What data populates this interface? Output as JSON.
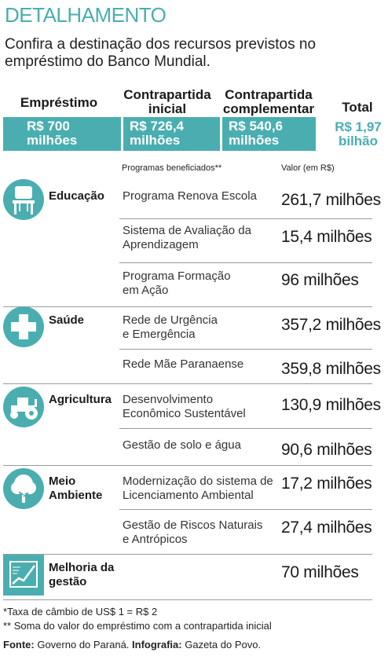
{
  "header": {
    "title": "DETALHAMENTO",
    "subtitle": "Confira a destinação dos recursos previstos no empréstimo do Banco Mundial."
  },
  "summary": [
    {
      "label_line1": "Empréstimo",
      "label_line2": "",
      "value_line1": "R$ 700",
      "value_line2": "milhões"
    },
    {
      "label_line1": "Contrapartida",
      "label_line2": "inicial",
      "value_line1": "R$ 726,4",
      "value_line2": "milhões"
    },
    {
      "label_line1": "Contrapartida",
      "label_line2": "complementar",
      "value_line1": "R$ 540,6",
      "value_line2": "milhões"
    },
    {
      "label_line1": "Total",
      "label_line2": "",
      "value_line1": "R$ 1,97",
      "value_line2": "bilhão"
    }
  ],
  "table": {
    "col_programs": "Programas beneficiados**",
    "col_value": "Valor (em R$)",
    "categories": [
      {
        "name_line1": "Educação",
        "name_line2": "",
        "icon": "chair-icon",
        "programs": [
          {
            "line1": "Programa Renova Escola",
            "line2": "",
            "value": "261,7 milhões"
          },
          {
            "line1": "Sistema de Avaliação da",
            "line2": "Aprendizagem",
            "value": "15,4 milhões"
          },
          {
            "line1": "Programa Formação",
            "line2": "em Ação",
            "value": "96 milhões"
          }
        ]
      },
      {
        "name_line1": "Saúde",
        "name_line2": "",
        "icon": "cross-icon",
        "programs": [
          {
            "line1": "Rede de Urgência",
            "line2": "e Emergência",
            "value": "357,2 milhões"
          },
          {
            "line1": "Rede Mãe Paranaense",
            "line2": "",
            "value": "359,8 milhões"
          }
        ]
      },
      {
        "name_line1": "Agricultura",
        "name_line2": "",
        "icon": "tractor-icon",
        "programs": [
          {
            "line1": "Desenvolvimento",
            "line2": "Econômico Sustentável",
            "value": "130,9 milhões"
          },
          {
            "line1": "Gestão de solo e água",
            "line2": "",
            "value": "90,6 milhões"
          }
        ]
      },
      {
        "name_line1": "Meio",
        "name_line2": "Ambiente",
        "icon": "tree-icon",
        "programs": [
          {
            "line1": "Modernização do sistema de",
            "line2": "Licenciamento Ambiental",
            "value": "17,2 milhões"
          },
          {
            "line1": "Gestão de Riscos Naturais",
            "line2": "e Antrópicos",
            "value": "27,4 milhões"
          }
        ]
      },
      {
        "name_line1": "Melhoria da",
        "name_line2": "gestão",
        "icon": "chart-board-icon",
        "programs": [
          {
            "line1": "",
            "line2": "",
            "value": "70 milhões"
          }
        ]
      }
    ]
  },
  "footnotes": {
    "note1": "*Taxa de câmbio de US$ 1 = R$ 2",
    "note2": "** Soma do valor do empréstimo com a contrapartida inicial",
    "source_label": "Fonte:",
    "source_value": "Governo do Paraná.",
    "infographic_label": "Infografia:",
    "infographic_value": "Gazeta do Povo."
  },
  "colors": {
    "accent": "#4aaeb0",
    "text": "#1a1a1a",
    "rule": "#9a9a9a"
  }
}
